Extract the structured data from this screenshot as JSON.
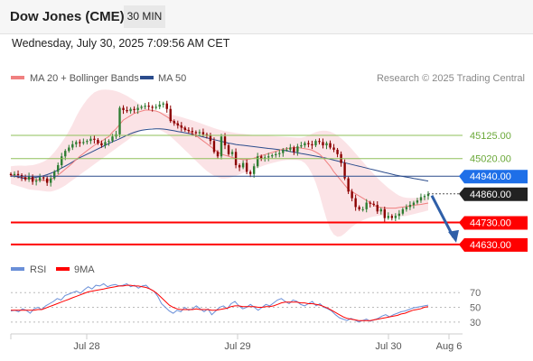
{
  "header": {
    "title": "Dow Jones (CME)",
    "timeframe": "30 MIN",
    "datetime": "Wednesday, July 30, 2025 7:09:56 AM CET"
  },
  "legend": {
    "ma20": "MA 20 + Bollinger Bands",
    "ma50": "MA 50",
    "copyright": "Research © 2025 Trading Central",
    "rsi": "RSI",
    "ma9": "9MA"
  },
  "colors": {
    "ma20": "#f08080",
    "ma50": "#2b4c8c",
    "band": "#fadadd",
    "up_candle": "#2e7d32",
    "down_candle": "#8b0000",
    "resistance": "#2b4c8c",
    "support": "#ff0000",
    "target_line": "#8fc05a",
    "arrow": "#2f5fa8",
    "last_price_bg": "#222222",
    "resistance_bg": "#1e6fe8",
    "support_bg": "#ff0000",
    "rsi": "#6a8fd8",
    "rsi_ma": "#ff0000"
  },
  "chart_data": {
    "type": "candlestick",
    "x_ticks": [
      "Jul 28",
      "Jul 29",
      "Jul 30",
      "Aug 6"
    ],
    "ylim": [
      44560,
      45330
    ],
    "levels": [
      {
        "label": "45125.00",
        "value": 45125.0,
        "kind": "target"
      },
      {
        "label": "45020.00",
        "value": 45020.0,
        "kind": "target"
      },
      {
        "label": "44940.00",
        "value": 44940.0,
        "kind": "resistance"
      },
      {
        "label": "44860.00",
        "value": 44860.0,
        "kind": "last"
      },
      {
        "label": "44730.00",
        "value": 44730.0,
        "kind": "support"
      },
      {
        "label": "44630.00",
        "value": 44630.0,
        "kind": "support"
      }
    ],
    "close": [
      44945,
      44950,
      44945,
      44935,
      44925,
      44940,
      44915,
      44920,
      44935,
      44930,
      44910,
      44930,
      44960,
      44990,
      45030,
      45055,
      45070,
      45085,
      45095,
      45090,
      45095,
      45100,
      45110,
      45105,
      45090,
      45080,
      45095,
      45100,
      45120,
      45130,
      45250,
      45240,
      45235,
      45245,
      45240,
      45250,
      45255,
      45260,
      45255,
      45250,
      45255,
      45265,
      45270,
      45245,
      45190,
      45180,
      45170,
      45160,
      45150,
      45145,
      45140,
      45135,
      45140,
      45130,
      45125,
      45100,
      45050,
      45030,
      45120,
      45080,
      45040,
      45050,
      44990,
      44980,
      45000,
      44960,
      44950,
      44985,
      45030,
      45020,
      45025,
      45030,
      45035,
      45040,
      45045,
      45060,
      45060,
      45070,
      45050,
      45075,
      45080,
      45090,
      45085,
      45080,
      45100,
      45095,
      45080,
      45090,
      45070,
      45060,
      45040,
      45000,
      44930,
      44870,
      44840,
      44800,
      44790,
      44790,
      44820,
      44815,
      44810,
      44780,
      44790,
      44750,
      44760,
      44750,
      44760,
      44770,
      44790,
      44800,
      44810,
      44820,
      44830,
      44845,
      44850,
      44860
    ],
    "ma20": [
      44945,
      44943,
      44941,
      44938,
      44933,
      44930,
      44926,
      44924,
      44922,
      44921,
      44920,
      44925,
      44935,
      44945,
      44958,
      44972,
      44985,
      45000,
      45015,
      45030,
      45043,
      45056,
      45068,
      45080,
      45090,
      45098,
      45110,
      45120,
      45140,
      45155,
      45175,
      45195,
      45205,
      45215,
      45225,
      45230,
      45235,
      45240,
      45240,
      45238,
      45236,
      45230,
      45220,
      45210,
      45198,
      45185,
      45175,
      45165,
      45155,
      45145,
      45135,
      45125,
      45112,
      45100,
      45088,
      45075,
      45062,
      45050,
      45040,
      45035,
      45030,
      45025,
      45020,
      45018,
      45015,
      45015,
      45018,
      45022,
      45028,
      45033,
      45038,
      45043,
      45048,
      45053,
      45058,
      45063,
      45065,
      45068,
      45070,
      45070,
      45068,
      45065,
      45062,
      45058,
      45050,
      45040,
      45025,
      45005,
      44985,
      44960,
      44940,
      44920,
      44900,
      44880,
      44870,
      44860,
      44850,
      44840,
      44830,
      44820,
      44810,
      44800,
      44798,
      44796,
      44795,
      44795,
      44795,
      44798,
      44800,
      44802,
      44805,
      44808,
      44810,
      44812,
      44815,
      44818
    ],
    "ma50": [
      44945,
      44940,
      44936,
      44932,
      44930,
      44930,
      44932,
      44935,
      44938,
      44942,
      44947,
      44953,
      44960,
      44968,
      44977,
      44986,
      44995,
      45005,
      45015,
      45024,
      45032,
      45040,
      45048,
      45056,
      45064,
      45072,
      45080,
      45088,
      45096,
      45103,
      45110,
      45118,
      45126,
      45133,
      45139,
      45144,
      45148,
      45151,
      45153,
      45154,
      45155,
      45155,
      45154,
      45152,
      45149,
      45146,
      45143,
      45140,
      45137,
      45134,
      45130,
      45126,
      45122,
      45118,
      45114,
      45110,
      45106,
      45102,
      45098,
      45094,
      45090,
      45087,
      45084,
      45082,
      45080,
      45078,
      45076,
      45074,
      45072,
      45070,
      45068,
      45066,
      45064,
      45062,
      45060,
      45058,
      45055,
      45052,
      45049,
      45046,
      45043,
      45040,
      45037,
      45034,
      45031,
      45028,
      45025,
      45021,
      45017,
      45013,
      45009,
      45005,
      45001,
      44997,
      44993,
      44989,
      44985,
      44981,
      44977,
      44973,
      44969,
      44965,
      44961,
      44957,
      44953,
      44949,
      44945,
      44942,
      44939,
      44936,
      44933,
      44930,
      44927,
      44924,
      44921,
      44918
    ],
    "band_upper": [
      44985,
      44987,
      44988,
      44988,
      44987,
      44989,
      44990,
      44994,
      44999,
      45006,
      45016,
      45031,
      45049,
      45070,
      45093,
      45118,
      45145,
      45175,
      45210,
      45240,
      45265,
      45288,
      45306,
      45320,
      45328,
      45332,
      45333,
      45332,
      45330,
      45326,
      45320,
      45313,
      45304,
      45294,
      45284,
      45272,
      45262,
      45254,
      45247,
      45241,
      45236,
      45232,
      45228,
      45224,
      45220,
      45216,
      45212,
      45208,
      45203,
      45198,
      45193,
      45188,
      45182,
      45176,
      45170,
      45164,
      45158,
      45153,
      45149,
      45145,
      45142,
      45139,
      45136,
      45134,
      45132,
      45130,
      45128,
      45127,
      45126,
      45125,
      45124,
      45123,
      45122,
      45121,
      45120,
      45119,
      45118,
      45117,
      45116,
      45115,
      45115,
      45118,
      45125,
      45133,
      45140,
      45145,
      45147,
      45146,
      45142,
      45135,
      45125,
      45112,
      45097,
      45080,
      45062,
      45043,
      45024,
      45005,
      44986,
      44968,
      44950,
      44932,
      44916,
      44901,
      44887,
      44874,
      44862,
      44852,
      44845,
      44842,
      44841,
      44841,
      44842,
      44843,
      44844,
      44845
    ],
    "band_lower": [
      44905,
      44900,
      44895,
      44890,
      44885,
      44880,
      44878,
      44876,
      44874,
      44872,
      44870,
      44870,
      44874,
      44880,
      44888,
      44898,
      44910,
      44922,
      44934,
      44946,
      44958,
      44970,
      44982,
      44994,
      45006,
      45018,
      45030,
      45042,
      45054,
      45066,
      45078,
      45090,
      45102,
      45114,
      45126,
      45138,
      45148,
      45155,
      45158,
      45158,
      45155,
      45150,
      45142,
      45132,
      45120,
      45105,
      45090,
      45074,
      45058,
      45042,
      45026,
      45010,
      44994,
      44978,
      44964,
      44952,
      44942,
      44935,
      44930,
      44930,
      44932,
      44936,
      44942,
      44948,
      44954,
      44960,
      44966,
      44972,
      44978,
      44984,
      44990,
      44995,
      45000,
      45004,
      45008,
      45011,
      45013,
      45014,
      45014,
      45013,
      45010,
      45000,
      44980,
      44950,
      44910,
      44860,
      44800,
      44745,
      44700,
      44675,
      44665,
      44668,
      44680,
      44695,
      44710,
      44722,
      44732,
      44740,
      44747,
      44753,
      44757,
      44760,
      44762,
      44763,
      44763,
      44762,
      44760,
      44758,
      44758,
      44760,
      44764,
      44768,
      44772,
      44776,
      44780,
      44785
    ],
    "rsi": {
      "y_ticks": [
        70,
        50,
        30
      ],
      "ylim": [
        20,
        85
      ],
      "rsi": [
        45,
        46,
        44,
        48,
        46,
        42,
        48,
        50,
        47,
        52,
        55,
        58,
        62,
        60,
        66,
        68,
        70,
        72,
        69,
        74,
        78,
        75,
        80,
        79,
        82,
        78,
        80,
        81,
        79,
        80,
        82,
        78,
        80,
        76,
        79,
        80,
        75,
        72,
        65,
        55,
        50,
        45,
        42,
        46,
        44,
        50,
        46,
        48,
        52,
        48,
        44,
        48,
        40,
        45,
        50,
        52,
        48,
        55,
        58,
        52,
        48,
        50,
        54,
        50,
        46,
        50,
        54,
        52,
        56,
        60,
        62,
        58,
        55,
        60,
        58,
        54,
        52,
        55,
        58,
        52,
        55,
        50,
        48,
        45,
        40,
        36,
        34,
        32,
        35,
        33,
        30,
        32,
        34,
        31,
        33,
        35,
        38,
        40,
        37,
        40,
        42,
        44,
        45,
        47,
        49,
        50,
        51,
        52,
        53
      ],
      "ma9": [
        46,
        46,
        46,
        46,
        46,
        46,
        46,
        47,
        47,
        49,
        51,
        53,
        55,
        57,
        59,
        61,
        63,
        65,
        67,
        69,
        71,
        72,
        73,
        74,
        75,
        76,
        77,
        78,
        79,
        79,
        80,
        80,
        79,
        79,
        78,
        77,
        75,
        72,
        68,
        63,
        58,
        53,
        50,
        48,
        47,
        47,
        47,
        47,
        48,
        47,
        47,
        47,
        46,
        46,
        47,
        48,
        49,
        51,
        52,
        52,
        51,
        51,
        51,
        51,
        50,
        50,
        51,
        51,
        52,
        54,
        56,
        57,
        57,
        57,
        57,
        56,
        56,
        55,
        55,
        54,
        53,
        51,
        49,
        46,
        43,
        40,
        37,
        35,
        34,
        33,
        32,
        32,
        32,
        32,
        33,
        34,
        35,
        36,
        37,
        38,
        39,
        41,
        42,
        44,
        46,
        47,
        48,
        50,
        51
      ]
    }
  }
}
